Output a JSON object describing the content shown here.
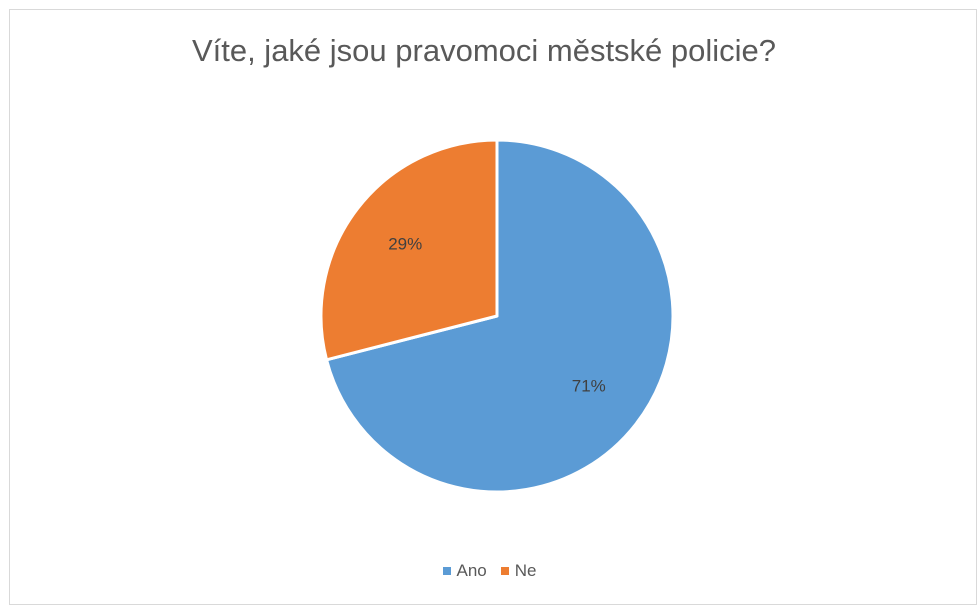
{
  "chart_data": {
    "type": "pie",
    "title": "Víte, jaké jsou pravomoci městské policie?",
    "categories": [
      "Ano",
      "Ne"
    ],
    "values": [
      71,
      29
    ],
    "data_labels": [
      "71%",
      "29%"
    ],
    "colors": [
      "#5B9BD5",
      "#ED7D31"
    ],
    "legend_position": "bottom",
    "start_angle": "12 o'clock, clockwise"
  }
}
